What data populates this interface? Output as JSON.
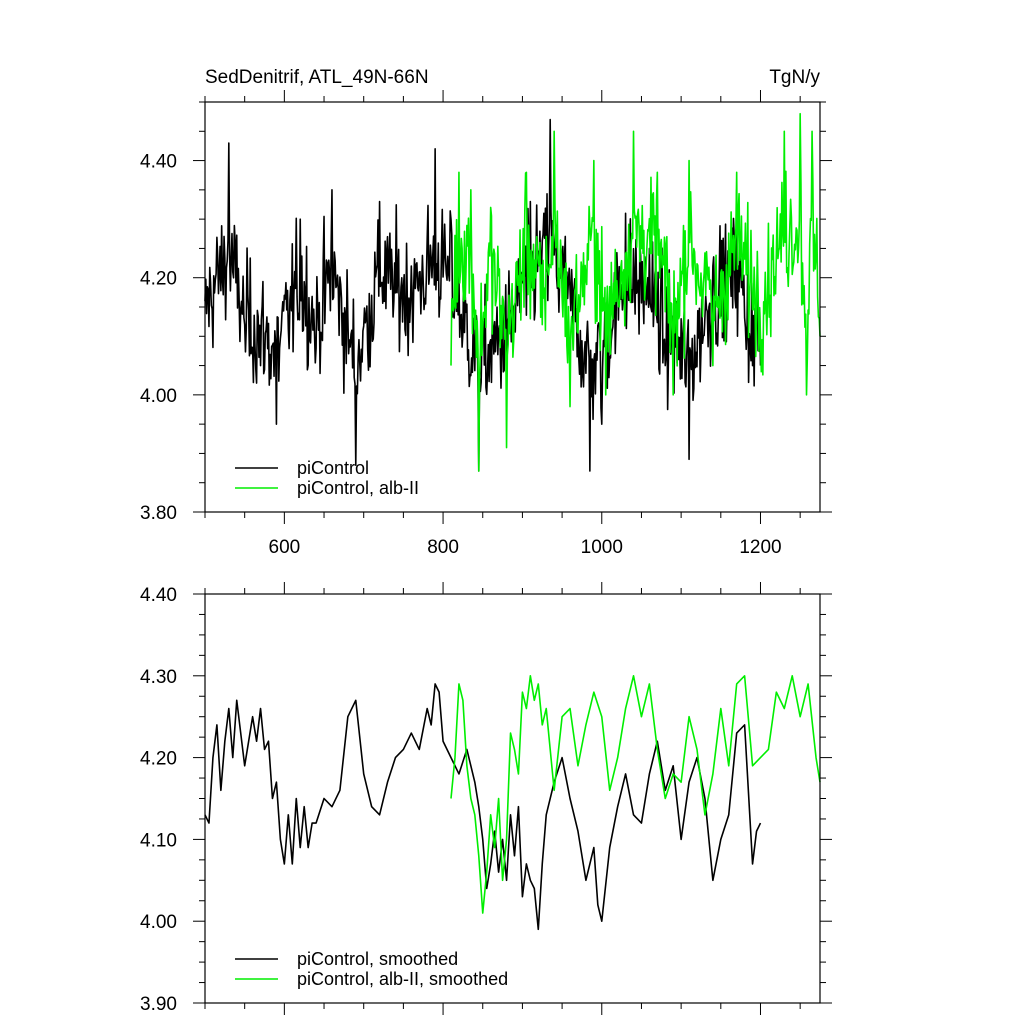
{
  "chart_data": [
    {
      "type": "line",
      "title": "SedDenitrif, ATL_49N-66N",
      "units": "TgN/y",
      "xlim": [
        500,
        1275
      ],
      "ylim": [
        3.8,
        4.5
      ],
      "x_ticks": [
        600,
        800,
        1000,
        1200
      ],
      "x_tick_labels": [
        "600",
        "800",
        "1000",
        "1200"
      ],
      "y_ticks": [
        3.8,
        4.0,
        4.2,
        4.4
      ],
      "y_tick_labels": [
        "3.80",
        "4.00",
        "4.20",
        "4.40"
      ],
      "grid": false,
      "legend_position": "bottom-left",
      "series": [
        {
          "name": "piControl",
          "color": "#000000",
          "x_range": [
            500,
            1200
          ],
          "approx_mean": 4.14,
          "approx_range": [
            3.87,
            4.47
          ],
          "sample_points": [
            [
              500,
              4.16
            ],
            [
              530,
              4.43
            ],
            [
              550,
              4.12
            ],
            [
              570,
              4.05
            ],
            [
              590,
              3.95
            ],
            [
              620,
              4.3
            ],
            [
              640,
              4.08
            ],
            [
              660,
              4.35
            ],
            [
              690,
              3.88
            ],
            [
              720,
              4.33
            ],
            [
              760,
              4.22
            ],
            [
              790,
              4.42
            ],
            [
              810,
              4.3
            ],
            [
              845,
              3.87
            ],
            [
              880,
              4.05
            ],
            [
              910,
              4.33
            ],
            [
              935,
              4.47
            ],
            [
              960,
              4.18
            ],
            [
              985,
              3.87
            ],
            [
              1000,
              3.95
            ],
            [
              1030,
              4.31
            ],
            [
              1060,
              4.25
            ],
            [
              1080,
              4.05
            ],
            [
              1110,
              3.89
            ],
            [
              1140,
              4.22
            ],
            [
              1170,
              4.35
            ],
            [
              1190,
              4.05
            ],
            [
              1200,
              4.05
            ]
          ]
        },
        {
          "name": "piControl, alb-II",
          "color": "#00ee00",
          "x_range": [
            810,
            1275
          ],
          "approx_mean": 4.19,
          "approx_range": [
            3.87,
            4.48
          ],
          "sample_points": [
            [
              810,
              4.05
            ],
            [
              820,
              4.38
            ],
            [
              835,
              4.35
            ],
            [
              845,
              3.87
            ],
            [
              860,
              4.32
            ],
            [
              880,
              3.91
            ],
            [
              905,
              4.38
            ],
            [
              925,
              4.12
            ],
            [
              940,
              4.45
            ],
            [
              960,
              3.98
            ],
            [
              990,
              4.4
            ],
            [
              1005,
              4.0
            ],
            [
              1040,
              4.45
            ],
            [
              1070,
              4.38
            ],
            [
              1090,
              4.0
            ],
            [
              1110,
              4.4
            ],
            [
              1140,
              4.05
            ],
            [
              1170,
              4.38
            ],
            [
              1200,
              4.1
            ],
            [
              1230,
              4.45
            ],
            [
              1250,
              4.48
            ],
            [
              1258,
              4.0
            ],
            [
              1265,
              4.45
            ],
            [
              1275,
              4.1
            ]
          ]
        }
      ]
    },
    {
      "type": "line",
      "xlim": [
        500,
        1275
      ],
      "ylim": [
        3.9,
        4.4
      ],
      "x_ticks": [
        600,
        800,
        1000,
        1200
      ],
      "y_ticks": [
        3.9,
        4.0,
        4.1,
        4.2,
        4.3,
        4.4
      ],
      "y_tick_labels": [
        "3.90",
        "4.00",
        "4.10",
        "4.20",
        "4.30",
        "4.40"
      ],
      "grid": false,
      "legend_position": "bottom-left",
      "series": [
        {
          "name": "piControl, smoothed",
          "color": "#000000",
          "x": [
            500,
            505,
            510,
            515,
            520,
            525,
            530,
            535,
            540,
            550,
            560,
            565,
            570,
            575,
            580,
            585,
            590,
            595,
            600,
            605,
            610,
            615,
            620,
            625,
            630,
            635,
            640,
            650,
            660,
            670,
            680,
            690,
            700,
            710,
            720,
            730,
            740,
            750,
            760,
            770,
            780,
            785,
            790,
            795,
            800,
            810,
            820,
            830,
            840,
            845,
            850,
            855,
            860,
            865,
            870,
            875,
            880,
            885,
            890,
            895,
            900,
            905,
            910,
            915,
            920,
            925,
            930,
            940,
            950,
            960,
            970,
            980,
            990,
            995,
            1000,
            1010,
            1020,
            1030,
            1040,
            1050,
            1060,
            1070,
            1080,
            1090,
            1100,
            1110,
            1120,
            1130,
            1140,
            1150,
            1160,
            1170,
            1180,
            1190,
            1195,
            1200
          ],
          "y": [
            4.13,
            4.12,
            4.2,
            4.24,
            4.16,
            4.22,
            4.26,
            4.2,
            4.27,
            4.19,
            4.25,
            4.22,
            4.26,
            4.21,
            4.22,
            4.15,
            4.17,
            4.1,
            4.07,
            4.13,
            4.07,
            4.15,
            4.09,
            4.14,
            4.09,
            4.12,
            4.12,
            4.15,
            4.14,
            4.16,
            4.25,
            4.27,
            4.18,
            4.14,
            4.13,
            4.17,
            4.2,
            4.21,
            4.23,
            4.21,
            4.26,
            4.24,
            4.29,
            4.28,
            4.22,
            4.2,
            4.18,
            4.21,
            4.17,
            4.14,
            4.1,
            4.04,
            4.07,
            4.11,
            4.06,
            4.1,
            4.05,
            4.13,
            4.08,
            4.14,
            4.03,
            4.07,
            4.05,
            4.04,
            3.99,
            4.07,
            4.13,
            4.17,
            4.2,
            4.15,
            4.11,
            4.05,
            4.09,
            4.02,
            4.0,
            4.09,
            4.14,
            4.18,
            4.13,
            4.12,
            4.18,
            4.22,
            4.16,
            4.19,
            4.1,
            4.17,
            4.2,
            4.15,
            4.05,
            4.1,
            4.13,
            4.23,
            4.24,
            4.07,
            4.11,
            4.12
          ]
        },
        {
          "name": "piControl, alb-II, smoothed",
          "color": "#00ee00",
          "x": [
            810,
            815,
            820,
            825,
            830,
            835,
            840,
            845,
            850,
            855,
            860,
            865,
            870,
            875,
            880,
            885,
            890,
            895,
            900,
            905,
            910,
            915,
            920,
            925,
            930,
            940,
            950,
            960,
            970,
            980,
            990,
            1000,
            1010,
            1020,
            1030,
            1040,
            1050,
            1060,
            1070,
            1080,
            1090,
            1100,
            1110,
            1120,
            1130,
            1140,
            1150,
            1160,
            1170,
            1180,
            1190,
            1200,
            1210,
            1220,
            1230,
            1240,
            1250,
            1260,
            1270,
            1275
          ],
          "y": [
            4.15,
            4.2,
            4.29,
            4.27,
            4.19,
            4.15,
            4.13,
            4.08,
            4.01,
            4.06,
            4.13,
            4.09,
            4.15,
            4.05,
            4.1,
            4.23,
            4.21,
            4.18,
            4.28,
            4.26,
            4.3,
            4.27,
            4.29,
            4.24,
            4.26,
            4.16,
            4.25,
            4.26,
            4.19,
            4.24,
            4.28,
            4.25,
            4.16,
            4.2,
            4.26,
            4.3,
            4.25,
            4.29,
            4.21,
            4.15,
            4.18,
            4.17,
            4.25,
            4.21,
            4.13,
            4.18,
            4.26,
            4.19,
            4.29,
            4.3,
            4.19,
            4.2,
            4.21,
            4.28,
            4.26,
            4.3,
            4.25,
            4.29,
            4.2,
            4.17
          ]
        }
      ]
    }
  ]
}
